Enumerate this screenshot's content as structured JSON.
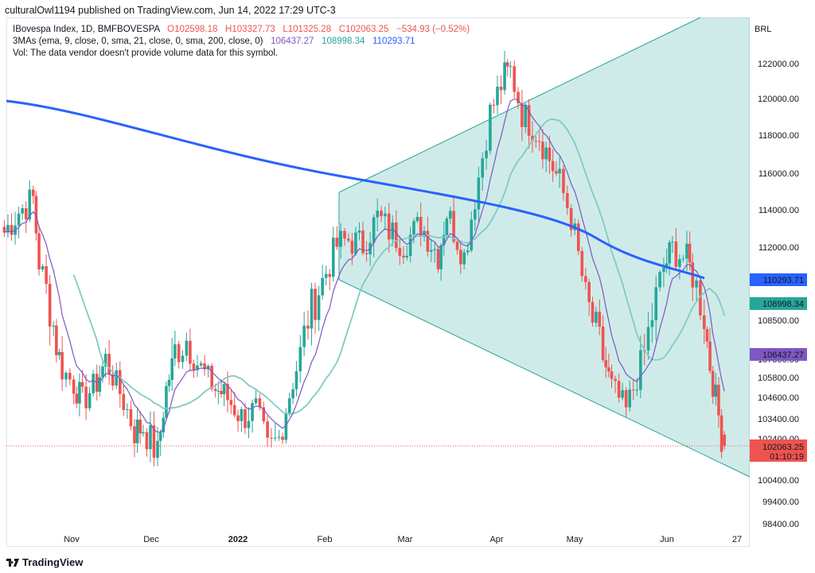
{
  "header": {
    "text": "culturalOwl1194 published on TradingView.com, Jun 14, 2022 17:29 UTC-3"
  },
  "legend": {
    "symbol": "IBovespa Index, 1D, BMFBOVESPA",
    "open": "O102598.18",
    "high": "H103327.73",
    "low": "L101325.28",
    "close": "C102063.25",
    "change": "−534.93 (−0.52%)",
    "ma_label": "3MAs (ema, 9, close, 0, sma, 21, close, 0, sma, 200, close, 0)",
    "ma1": "106437.27",
    "ma2": "108998.34",
    "ma3": "110293.71",
    "vol": "Vol: The data vendor doesn't provide volume data for this symbol."
  },
  "footer": {
    "brand": "TradingView"
  },
  "colors": {
    "up": "#26a69a",
    "down": "#ef5350",
    "ema9": "#7e57c2",
    "sma21": "#80cbc4",
    "sma200": "#2962ff",
    "channel": "#26a69a"
  },
  "chart_data": {
    "type": "candlestick",
    "currency": "BRL",
    "y_ticks": [
      "122000.00",
      "120000.00",
      "118000.00",
      "116000.00",
      "114000.00",
      "112000.00",
      "108500.00",
      "107000.00",
      "105800.00",
      "104600.00",
      "103400.00",
      "102400.00",
      "100400.00",
      "99400.00",
      "98400.00"
    ],
    "x_ticks": [
      "Nov",
      "Dec",
      "2022",
      "Feb",
      "Mar",
      "Apr",
      "May",
      "Jun",
      "27"
    ],
    "price_labels": [
      {
        "value": "110293.71",
        "series": "sma200"
      },
      {
        "value": "108998.34",
        "series": "sma21"
      },
      {
        "value": "106437.27",
        "series": "ema9"
      },
      {
        "value": "102063.25",
        "series": "last",
        "countdown": "01:10:19"
      }
    ],
    "close_path": [
      [
        "2021-10-08",
        112800
      ],
      [
        "2021-10-13",
        113900
      ],
      [
        "2021-10-18",
        114600
      ],
      [
        "2021-10-20",
        111200
      ],
      [
        "2021-10-25",
        108300
      ],
      [
        "2021-10-28",
        106300
      ],
      [
        "2021-11-01",
        105400
      ],
      [
        "2021-11-04",
        104400
      ],
      [
        "2021-11-09",
        105500
      ],
      [
        "2021-11-12",
        106900
      ],
      [
        "2021-11-17",
        104900
      ],
      [
        "2021-11-22",
        102800
      ],
      [
        "2021-11-25",
        103000
      ],
      [
        "2021-11-30",
        101600
      ],
      [
        "2021-12-03",
        105100
      ],
      [
        "2021-12-06",
        107300
      ],
      [
        "2021-12-10",
        107800
      ],
      [
        "2021-12-15",
        106400
      ],
      [
        "2021-12-20",
        105100
      ],
      [
        "2021-12-23",
        104800
      ],
      [
        "2021-12-29",
        103500
      ],
      [
        "2022-01-03",
        103900
      ],
      [
        "2022-01-07",
        101800
      ],
      [
        "2022-01-11",
        102400
      ],
      [
        "2022-01-17",
        106400
      ],
      [
        "2022-01-21",
        108600
      ],
      [
        "2022-01-26",
        110200
      ],
      [
        "2022-01-31",
        112100
      ],
      [
        "2022-02-04",
        112400
      ],
      [
        "2022-02-09",
        112100
      ],
      [
        "2022-02-14",
        113600
      ],
      [
        "2022-02-18",
        112900
      ],
      [
        "2022-02-23",
        112200
      ],
      [
        "2022-03-01",
        113200
      ],
      [
        "2022-03-07",
        111600
      ],
      [
        "2022-03-10",
        113900
      ],
      [
        "2022-03-16",
        111500
      ],
      [
        "2022-03-21",
        115800
      ],
      [
        "2022-03-25",
        119200
      ],
      [
        "2022-03-30",
        121300
      ],
      [
        "2022-04-01",
        121600
      ],
      [
        "2022-04-05",
        119200
      ],
      [
        "2022-04-11",
        118000
      ],
      [
        "2022-04-18",
        115500
      ],
      [
        "2022-04-22",
        113600
      ],
      [
        "2022-04-27",
        109400
      ],
      [
        "2022-05-03",
        107100
      ],
      [
        "2022-05-06",
        105200
      ],
      [
        "2022-05-11",
        103800
      ],
      [
        "2022-05-16",
        106500
      ],
      [
        "2022-05-20",
        108700
      ],
      [
        "2022-05-24",
        110900
      ],
      [
        "2022-05-27",
        111900
      ],
      [
        "2022-06-01",
        111300
      ],
      [
        "2022-06-03",
        110500
      ],
      [
        "2022-06-07",
        108700
      ],
      [
        "2022-06-10",
        105500
      ],
      [
        "2022-06-13",
        102600
      ],
      [
        "2022-06-14",
        102063
      ]
    ],
    "series": [
      {
        "name": "IBovespa Index",
        "type": "candles"
      },
      {
        "name": "ema 9"
      },
      {
        "name": "sma 21"
      },
      {
        "name": "sma 200"
      }
    ],
    "annotations": [
      {
        "type": "channel",
        "shape": "diverging"
      }
    ]
  }
}
